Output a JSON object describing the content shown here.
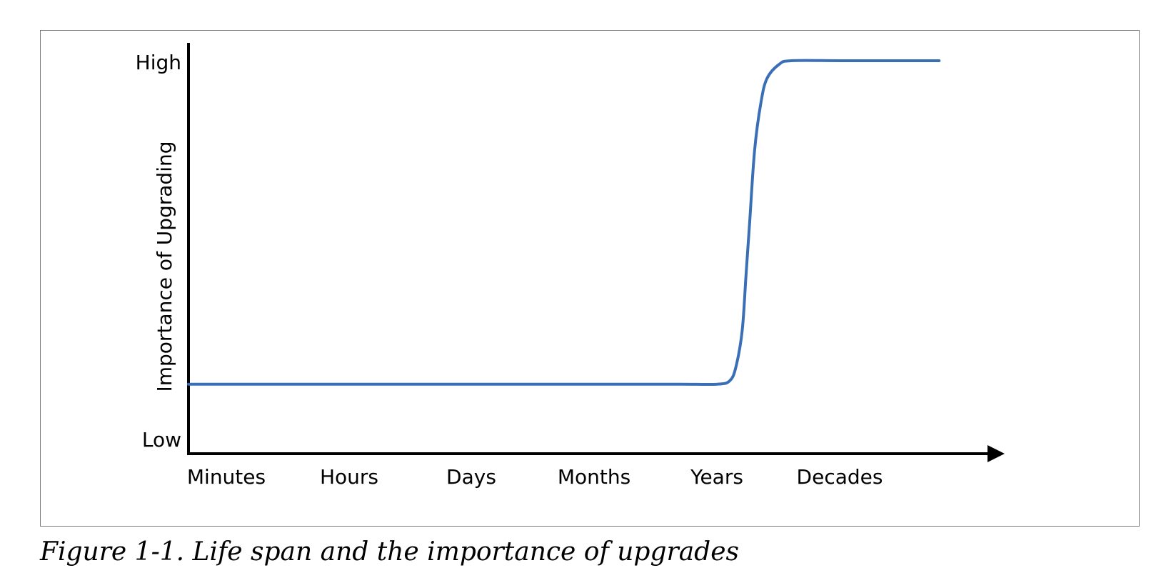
{
  "chart_data": {
    "type": "line",
    "title": "",
    "xlabel": "",
    "ylabel": "Importance of Upgrading",
    "categories": [
      "Minutes",
      "Hours",
      "Days",
      "Months",
      "Years",
      "Decades"
    ],
    "y_tick_labels": [
      "Low",
      "High"
    ],
    "ylim": [
      0,
      1
    ],
    "xlim": [
      0,
      6.4
    ],
    "grid": false,
    "legend": "none",
    "series": [
      {
        "color": "#3a6fb5",
        "points": [
          [
            0,
            0.1
          ],
          [
            0.5,
            0.1
          ],
          [
            1,
            0.1
          ],
          [
            1.5,
            0.1
          ],
          [
            2,
            0.1
          ],
          [
            2.5,
            0.1
          ],
          [
            3,
            0.1
          ],
          [
            3.5,
            0.1
          ],
          [
            4,
            0.1
          ],
          [
            4.3,
            0.1
          ],
          [
            4.4,
            0.11
          ],
          [
            4.45,
            0.15
          ],
          [
            4.5,
            0.25
          ],
          [
            4.53,
            0.4
          ],
          [
            4.56,
            0.55
          ],
          [
            4.6,
            0.75
          ],
          [
            4.65,
            0.88
          ],
          [
            4.7,
            0.95
          ],
          [
            4.8,
            0.99
          ],
          [
            4.9,
            1.0
          ],
          [
            5.3,
            1.0
          ],
          [
            5.8,
            1.0
          ],
          [
            6.1,
            1.0
          ]
        ]
      }
    ]
  },
  "caption": "Figure 1-1. Life span and the importance of upgrades"
}
